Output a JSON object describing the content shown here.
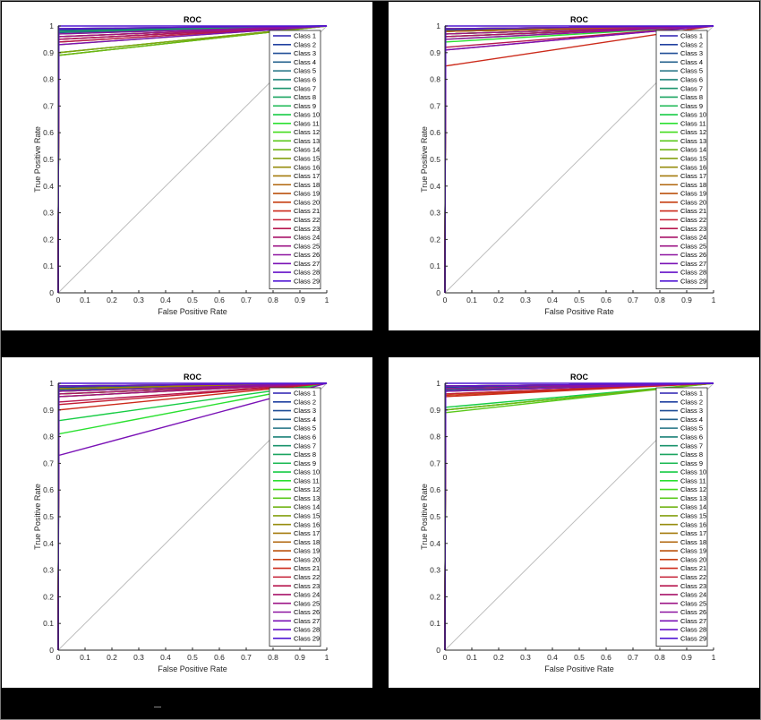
{
  "legend_labels": [
    "Class 1",
    "Class 2",
    "Class 3",
    "Class 4",
    "Class 5",
    "Class 6",
    "Class 7",
    "Class 8",
    "Class 9",
    "Class 10",
    "Class 11",
    "Class 12",
    "Class 13",
    "Class 14",
    "Class 15",
    "Class 16",
    "Class 17",
    "Class 18",
    "Class 19",
    "Class 20",
    "Class 21",
    "Class 22",
    "Class 23",
    "Class 24",
    "Class 25",
    "Class 26",
    "Class 27",
    "Class 28",
    "Class 29"
  ],
  "series_colors": [
    "#2a1fb0",
    "#2040a0",
    "#204e96",
    "#22608c",
    "#1f7082",
    "#1c8278",
    "#1a936c",
    "#1aa460",
    "#19b852",
    "#16cc44",
    "#2ae030",
    "#42dc1a",
    "#5ac81a",
    "#70b414",
    "#84a010",
    "#968c0e",
    "#a47a0c",
    "#b0660c",
    "#bc520e",
    "#c63e12",
    "#cc2a1a",
    "#c41c32",
    "#b6164e",
    "#a8146a",
    "#9c1486",
    "#8c12a0",
    "#7a12b6",
    "#6612c8",
    "#5018d4"
  ],
  "chart_data": [
    {
      "type": "line",
      "title": "ROC",
      "xlabel": "False Positive Rate",
      "ylabel": "True Positive Rate",
      "xlim": [
        0,
        1
      ],
      "ylim": [
        0,
        1
      ],
      "xticks": [
        "0",
        "0.1",
        "0.2",
        "0.3",
        "0.4",
        "0.5",
        "0.6",
        "0.7",
        "0.8",
        "0.9",
        "1"
      ],
      "yticks": [
        "0",
        "0.1",
        "0.2",
        "0.3",
        "0.4",
        "0.5",
        "0.6",
        "0.7",
        "0.8",
        "0.9",
        "1"
      ],
      "legend_position": "right",
      "diagonal_color": "#bdbdbd",
      "tpr_at_first_threshold": [
        0.99,
        0.985,
        0.98,
        0.975,
        0.98,
        0.99,
        0.97,
        0.98,
        0.96,
        0.9,
        0.89,
        0.9,
        0.89,
        0.89,
        0.9,
        0.93,
        0.95,
        0.96,
        0.94,
        0.95,
        0.96,
        0.95,
        0.94,
        0.95,
        0.96,
        0.97,
        0.93,
        0.99,
        1.0
      ],
      "fpr_at_first_threshold": [
        0.002,
        0.002,
        0.002,
        0.002,
        0.002,
        0.002,
        0.002,
        0.002,
        0.002,
        0.002,
        0.002,
        0.002,
        0.002,
        0.002,
        0.002,
        0.002,
        0.002,
        0.002,
        0.002,
        0.002,
        0.002,
        0.002,
        0.002,
        0.002,
        0.002,
        0.002,
        0.002,
        0.002,
        0.002
      ]
    },
    {
      "type": "line",
      "title": "ROC",
      "xlabel": "False Positive Rate",
      "ylabel": "True Positive Rate",
      "xlim": [
        0,
        1
      ],
      "ylim": [
        0,
        1
      ],
      "xticks": [
        "0",
        "0.1",
        "0.2",
        "0.3",
        "0.4",
        "0.5",
        "0.6",
        "0.7",
        "0.8",
        "0.9",
        "1"
      ],
      "yticks": [
        "0",
        "0.1",
        "0.2",
        "0.3",
        "0.4",
        "0.5",
        "0.6",
        "0.7",
        "0.8",
        "0.9",
        "1"
      ],
      "legend_position": "right",
      "diagonal_color": "#bdbdbd",
      "tpr_at_first_threshold": [
        0.99,
        0.985,
        0.98,
        0.96,
        0.97,
        0.98,
        0.99,
        0.97,
        0.98,
        0.96,
        0.94,
        0.95,
        0.97,
        0.98,
        0.99,
        0.98,
        0.97,
        0.99,
        0.98,
        0.96,
        0.85,
        0.91,
        0.92,
        0.96,
        0.97,
        0.95,
        0.91,
        0.99,
        1.0
      ],
      "fpr_at_first_threshold": [
        0.002,
        0.002,
        0.002,
        0.002,
        0.002,
        0.002,
        0.002,
        0.002,
        0.002,
        0.002,
        0.002,
        0.002,
        0.002,
        0.002,
        0.002,
        0.002,
        0.002,
        0.002,
        0.002,
        0.002,
        0.002,
        0.002,
        0.002,
        0.002,
        0.002,
        0.002,
        0.002,
        0.002,
        0.002
      ]
    },
    {
      "type": "line",
      "title": "ROC",
      "xlabel": "False Positive Rate",
      "ylabel": "True Positive Rate",
      "xlim": [
        0,
        1
      ],
      "ylim": [
        0,
        1
      ],
      "xticks": [
        "0",
        "0.1",
        "0.2",
        "0.3",
        "0.4",
        "0.5",
        "0.6",
        "0.7",
        "0.8",
        "0.9",
        "1"
      ],
      "yticks": [
        "0",
        "0.1",
        "0.2",
        "0.3",
        "0.4",
        "0.5",
        "0.6",
        "0.7",
        "0.8",
        "0.9",
        "1"
      ],
      "legend_position": "right",
      "diagonal_color": "#bdbdbd",
      "tpr_at_first_threshold": [
        0.99,
        0.985,
        0.98,
        0.975,
        0.97,
        0.99,
        0.97,
        0.98,
        0.96,
        0.86,
        0.81,
        0.96,
        0.95,
        0.97,
        0.98,
        0.99,
        0.98,
        0.97,
        0.96,
        0.95,
        0.9,
        0.92,
        0.93,
        0.96,
        0.95,
        0.97,
        0.73,
        0.99,
        1.0
      ],
      "fpr_at_first_threshold": [
        0.002,
        0.002,
        0.002,
        0.002,
        0.002,
        0.002,
        0.002,
        0.002,
        0.002,
        0.002,
        0.002,
        0.002,
        0.002,
        0.002,
        0.002,
        0.002,
        0.002,
        0.002,
        0.002,
        0.002,
        0.002,
        0.002,
        0.002,
        0.002,
        0.002,
        0.002,
        0.002,
        0.002,
        0.002
      ]
    },
    {
      "type": "line",
      "title": "ROC",
      "xlabel": "False Positive Rate",
      "ylabel": "True Positive Rate",
      "xlim": [
        0,
        1
      ],
      "ylim": [
        0,
        1
      ],
      "xticks": [
        "0",
        "0.1",
        "0.2",
        "0.3",
        "0.4",
        "0.5",
        "0.6",
        "0.7",
        "0.8",
        "0.9",
        "1"
      ],
      "yticks": [
        "0",
        "0.1",
        "0.2",
        "0.3",
        "0.4",
        "0.5",
        "0.6",
        "0.7",
        "0.8",
        "0.9",
        "1"
      ],
      "legend_position": "right",
      "diagonal_color": "#bdbdbd",
      "tpr_at_first_threshold": [
        0.99,
        0.985,
        0.98,
        0.975,
        0.98,
        0.99,
        0.97,
        0.98,
        0.99,
        0.91,
        0.9,
        0.9,
        0.89,
        0.9,
        0.98,
        0.97,
        0.98,
        0.99,
        0.96,
        0.955,
        0.95,
        0.96,
        0.97,
        0.98,
        0.99,
        0.98,
        0.97,
        0.99,
        1.0
      ],
      "fpr_at_first_threshold": [
        0.002,
        0.002,
        0.002,
        0.002,
        0.002,
        0.002,
        0.002,
        0.002,
        0.002,
        0.002,
        0.002,
        0.002,
        0.002,
        0.002,
        0.002,
        0.002,
        0.002,
        0.002,
        0.002,
        0.002,
        0.002,
        0.002,
        0.002,
        0.002,
        0.002,
        0.002,
        0.002,
        0.002,
        0.002
      ]
    }
  ]
}
